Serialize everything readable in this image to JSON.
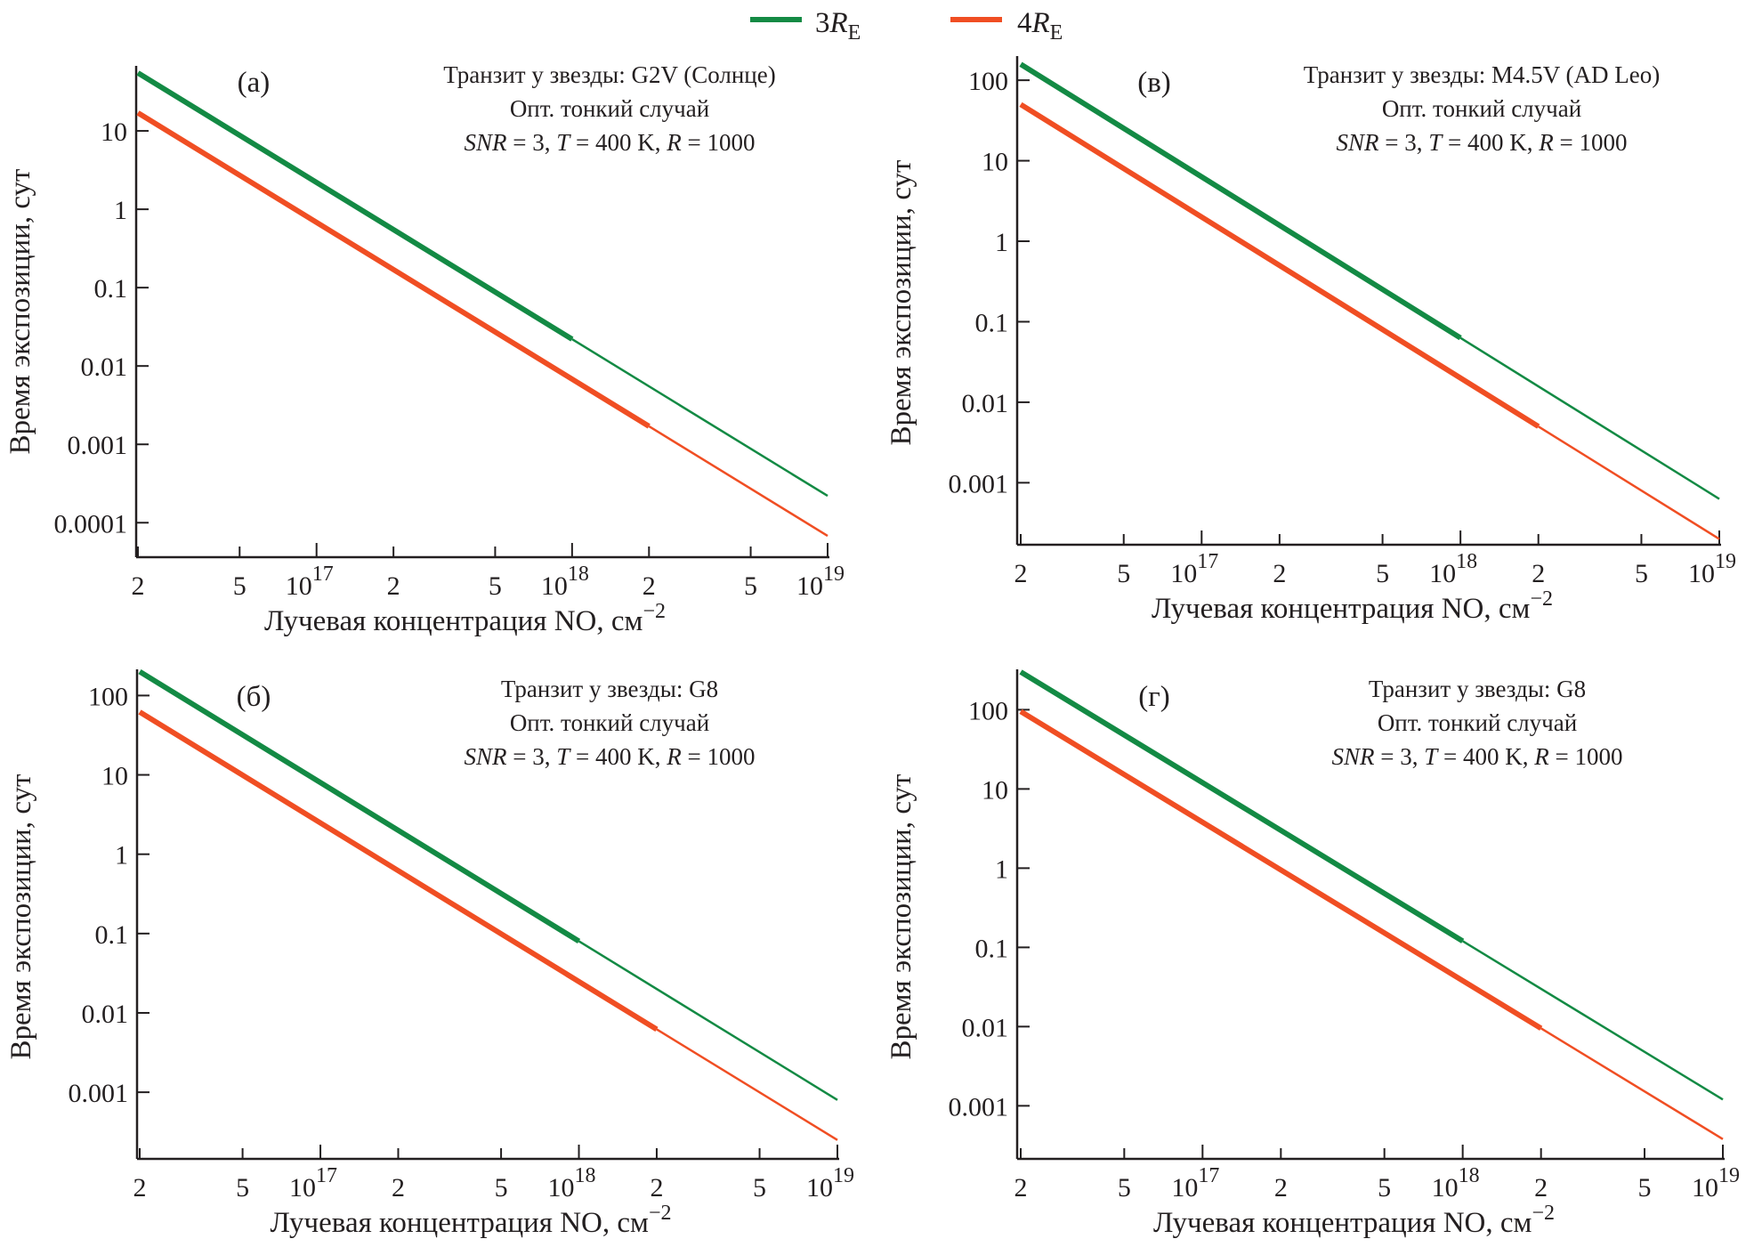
{
  "legend": {
    "items": [
      {
        "label_main": "3",
        "label_var": "R",
        "label_sub": "E",
        "color": "#138a44"
      },
      {
        "label_main": "4",
        "label_var": "R",
        "label_sub": "E",
        "color": "#f04e23"
      }
    ]
  },
  "chart_data": [
    {
      "type": "line",
      "panel": "(а)",
      "xscale": "log",
      "yscale": "log",
      "xlabel": "Лучевая концентрация NO, см",
      "xlabel_sup": "−2",
      "ylabel": "Время экспозиции, сут",
      "xlim": [
        2e+16,
        1e+19
      ],
      "ylim_log10": [
        -4.44,
        1.83
      ],
      "yticks": [
        {
          "v": 10,
          "label": "10"
        },
        {
          "v": 1,
          "label": "1"
        },
        {
          "v": 0.1,
          "label": "0.1"
        },
        {
          "v": 0.01,
          "label": "0.01"
        },
        {
          "v": 0.001,
          "label": "0.001"
        },
        {
          "v": 0.0001,
          "label": "0.0001"
        }
      ],
      "annotation": [
        "Транзит у звезды: G2V (Солнце)",
        "Опт. тонкий случай",
        "SNR = 3, T = 400 K, R = 1000"
      ],
      "series": [
        {
          "name": "3R_E",
          "color": "#138a44",
          "x": [
            2e+16,
            1e+18,
            1e+19
          ],
          "y": [
            55,
            0.022,
            0.00022
          ],
          "thick_until": 1e+18
        },
        {
          "name": "4R_E",
          "color": "#f04e23",
          "x": [
            2e+16,
            2e+18,
            1e+19
          ],
          "y": [
            17,
            0.0017,
            6.8e-05
          ],
          "thick_until": 2e+18
        }
      ]
    },
    {
      "type": "line",
      "panel": "(в)",
      "xscale": "log",
      "yscale": "log",
      "xlabel": "Лучевая концентрация NO, см",
      "xlabel_sup": "−2",
      "ylabel": "Время экспозиции, сут",
      "xlim": [
        2e+16,
        1e+19
      ],
      "ylim_log10": [
        -3.77,
        2.3
      ],
      "yticks": [
        {
          "v": 100,
          "label": "100"
        },
        {
          "v": 10,
          "label": "10"
        },
        {
          "v": 1,
          "label": "1"
        },
        {
          "v": 0.1,
          "label": "0.1"
        },
        {
          "v": 0.01,
          "label": "0.01"
        },
        {
          "v": 0.001,
          "label": "0.001"
        }
      ],
      "annotation": [
        "Транзит у звезды: M4.5V (AD Leo)",
        "Опт. тонкий случай",
        "SNR = 3, T = 400 K, R = 1000"
      ],
      "series": [
        {
          "name": "3R_E",
          "color": "#138a44",
          "x": [
            2e+16,
            1e+18,
            1e+19
          ],
          "y": [
            158,
            0.063,
            0.00063
          ],
          "thick_until": 1e+18
        },
        {
          "name": "4R_E",
          "color": "#f04e23",
          "x": [
            2e+16,
            2e+18,
            1e+19
          ],
          "y": [
            50,
            0.005,
            0.0002
          ],
          "thick_until": 2e+18
        }
      ]
    },
    {
      "type": "line",
      "panel": "(б)",
      "xscale": "log",
      "yscale": "log",
      "xlabel": "Лучевая концентрация NO, см",
      "xlabel_sup": "−2",
      "ylabel": "Время экспозиции, сут",
      "xlim": [
        2e+16,
        1e+19
      ],
      "ylim_log10": [
        -3.84,
        2.33
      ],
      "yticks": [
        {
          "v": 100,
          "label": "100"
        },
        {
          "v": 10,
          "label": "10"
        },
        {
          "v": 1,
          "label": "1"
        },
        {
          "v": 0.1,
          "label": "0.1"
        },
        {
          "v": 0.01,
          "label": "0.01"
        },
        {
          "v": 0.001,
          "label": "0.001"
        }
      ],
      "annotation": [
        "Транзит у звезды: G8",
        "Опт. тонкий случай",
        "SNR = 3, T = 400 K, R = 1000"
      ],
      "series": [
        {
          "name": "3R_E",
          "color": "#138a44",
          "x": [
            2e+16,
            1e+18,
            1e+19
          ],
          "y": [
            200,
            0.08,
            0.0008
          ],
          "thick_until": 1e+18
        },
        {
          "name": "4R_E",
          "color": "#f04e23",
          "x": [
            2e+16,
            2e+18,
            1e+19
          ],
          "y": [
            62,
            0.0062,
            0.00025
          ],
          "thick_until": 2e+18
        }
      ]
    },
    {
      "type": "line",
      "panel": "(г)",
      "xscale": "log",
      "yscale": "log",
      "xlabel": "Лучевая концентрация NO, см",
      "xlabel_sup": "−2",
      "ylabel": "Время экспозиции, сут",
      "xlim": [
        2e+16,
        1e+19
      ],
      "ylim_log10": [
        -3.67,
        2.51
      ],
      "yticks": [
        {
          "v": 100,
          "label": "100"
        },
        {
          "v": 10,
          "label": "10"
        },
        {
          "v": 1,
          "label": "1"
        },
        {
          "v": 0.1,
          "label": "0.1"
        },
        {
          "v": 0.01,
          "label": "0.01"
        },
        {
          "v": 0.001,
          "label": "0.001"
        }
      ],
      "annotation": [
        "Транзит у звезды: G8",
        "Опт. тонкий случай",
        "SNR = 3, T = 400 K, R = 1000"
      ],
      "series": [
        {
          "name": "3R_E",
          "color": "#138a44",
          "x": [
            2e+16,
            1e+18,
            1e+19
          ],
          "y": [
            300,
            0.12,
            0.0012
          ],
          "thick_until": 1e+18
        },
        {
          "name": "4R_E",
          "color": "#f04e23",
          "x": [
            2e+16,
            2e+18,
            1e+19
          ],
          "y": [
            95,
            0.0095,
            0.00038
          ],
          "thick_until": 2e+18
        }
      ]
    }
  ],
  "xticks": [
    {
      "v": 2e+16,
      "label": "2",
      "major": false
    },
    {
      "v": 5e+16,
      "label": "5",
      "major": false
    },
    {
      "v": 1e+17,
      "label": "10",
      "exp": "17",
      "major": true
    },
    {
      "v": 2e+17,
      "label": "2",
      "major": false
    },
    {
      "v": 5e+17,
      "label": "5",
      "major": false
    },
    {
      "v": 1e+18,
      "label": "10",
      "exp": "18",
      "major": true
    },
    {
      "v": 2e+18,
      "label": "2",
      "major": false
    },
    {
      "v": 5e+18,
      "label": "5",
      "major": false
    },
    {
      "v": 1e+19,
      "label": "10",
      "exp": "19",
      "major": true
    }
  ]
}
